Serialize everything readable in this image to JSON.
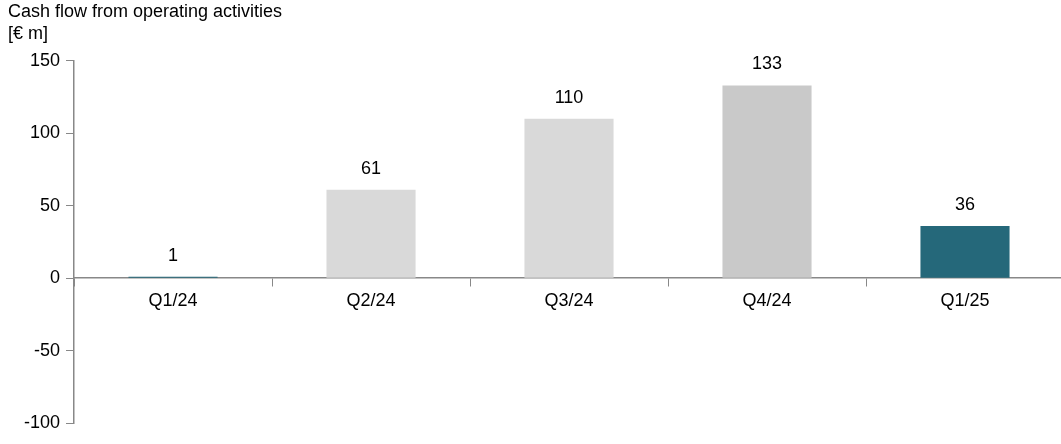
{
  "chart_data": {
    "type": "bar",
    "title": "Cash flow from operating activities",
    "ylabel": "[€ m]",
    "categories": [
      "Q1/24",
      "Q2/24",
      "Q3/24",
      "Q4/24",
      "Q1/25"
    ],
    "values": [
      1,
      61,
      110,
      133,
      36
    ],
    "colors": [
      "#25687a",
      "#d9d9d9",
      "#d9d9d9",
      "#c9c9c9",
      "#25687a"
    ],
    "ylim": [
      -100,
      150
    ],
    "yticks": [
      -100,
      -50,
      0,
      50,
      100,
      150
    ],
    "grid": false,
    "legend": false,
    "data_labels": true
  }
}
